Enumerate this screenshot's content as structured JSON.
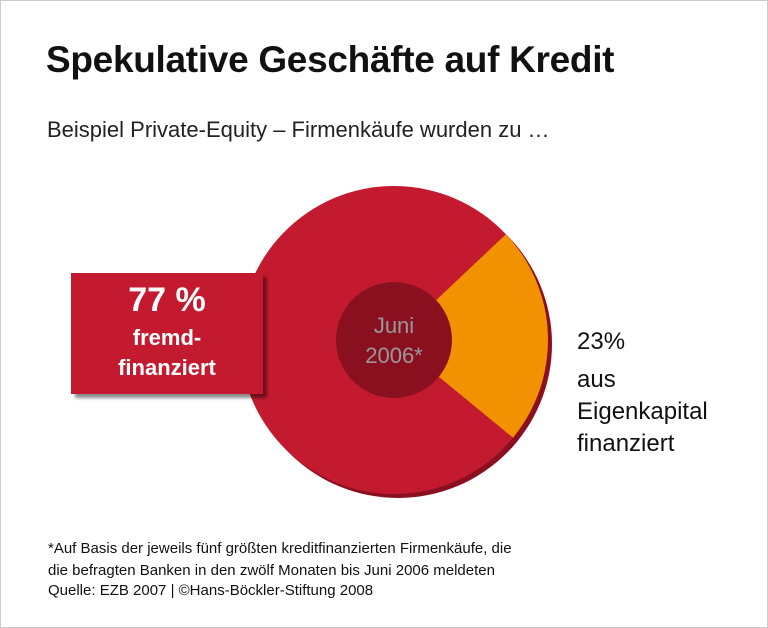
{
  "chart_data": {
    "type": "donut",
    "title": "Spekulative Geschäfte auf Kredit",
    "subtitle": "Beispiel Private-Equity – Firmenkäufe wurden zu …",
    "center_label": "Juni\n2006*",
    "categories": [
      "fremd-\nfinanziert",
      "aus\nEigenkapital\nfinanziert"
    ],
    "values": [
      77,
      23
    ],
    "value_labels": [
      "77 %",
      "23%"
    ],
    "colors": [
      "#c41a30",
      "#f39200"
    ],
    "footnote": "*Auf Basis der jeweils fünf größten kreditfinanzierten Firmenkäufe, die\ndie befragten Banken in den zwölf Monaten bis Juni 2006 meldeten",
    "source": "Quelle: EZB 2007 | ©Hans-Böckler-Stiftung 2008"
  }
}
